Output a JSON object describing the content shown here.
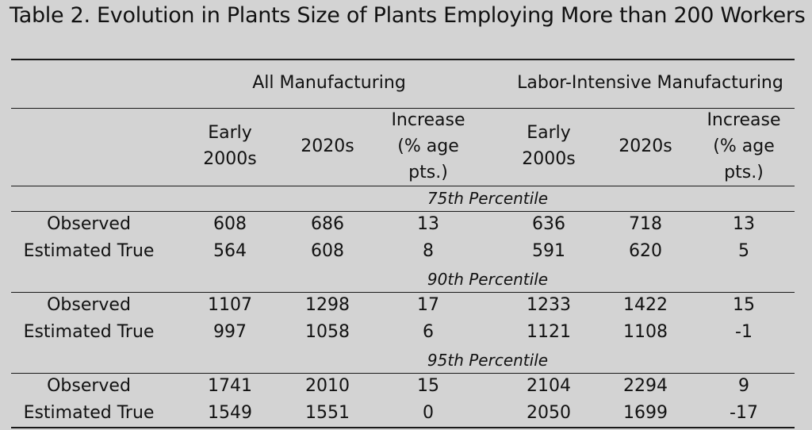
{
  "title": "Table 2. Evolution in Plants Size of Plants Employing More than 200 Workers",
  "groups": [
    "All Manufacturing",
    "Labor-Intensive Manufacturing"
  ],
  "columns": [
    [
      "Early",
      "2000s"
    ],
    [
      "2020s"
    ],
    [
      "Increase",
      "(% age",
      "pts.)"
    ],
    [
      "Early",
      "2000s"
    ],
    [
      "2020s"
    ],
    [
      "Increase",
      "(% age",
      "pts.)"
    ]
  ],
  "sections": [
    {
      "label": "75th Percentile",
      "rows": [
        {
          "label": "Observed",
          "values": [
            "608",
            "686",
            "13",
            "636",
            "718",
            "13"
          ]
        },
        {
          "label": "Estimated True",
          "values": [
            "564",
            "608",
            "8",
            "591",
            "620",
            "5"
          ]
        }
      ]
    },
    {
      "label": "90th Percentile",
      "rows": [
        {
          "label": "Observed",
          "values": [
            "1107",
            "1298",
            "17",
            "1233",
            "1422",
            "15"
          ]
        },
        {
          "label": "Estimated True",
          "values": [
            "997",
            "1058",
            "6",
            "1121",
            "1108",
            "-1"
          ]
        }
      ]
    },
    {
      "label": "95th Percentile",
      "rows": [
        {
          "label": "Observed",
          "values": [
            "1741",
            "2010",
            "15",
            "2104",
            "2294",
            "9"
          ]
        },
        {
          "label": "Estimated True",
          "values": [
            "1549",
            "1551",
            "0",
            "2050",
            "1699",
            "-17"
          ]
        }
      ]
    }
  ]
}
